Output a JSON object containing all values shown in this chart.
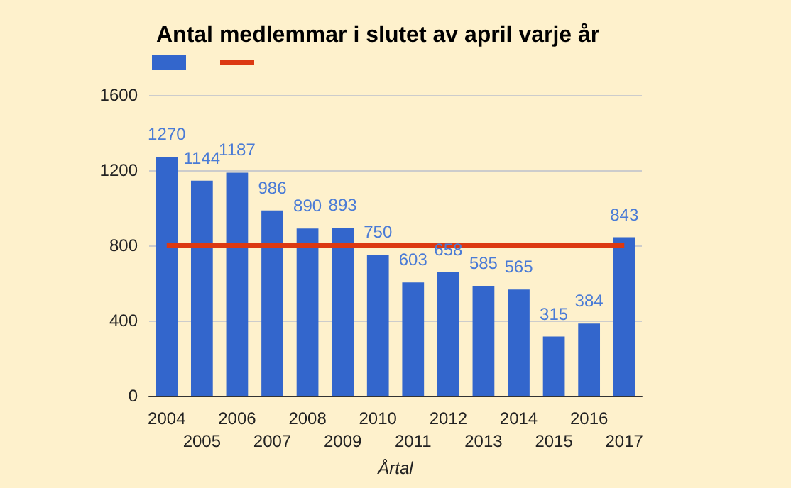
{
  "chart_data": {
    "type": "bar",
    "title": "Antal medlemmar i slutet av april varje år",
    "xlabel": "Årtal",
    "categories": [
      "2004",
      "2005",
      "2006",
      "2007",
      "2008",
      "2009",
      "2010",
      "2011",
      "2012",
      "2013",
      "2014",
      "2015",
      "2016",
      "2017"
    ],
    "series": [
      {
        "color": "#3366cc",
        "values": [
          1270,
          1144,
          1187,
          986,
          890,
          893,
          750,
          603,
          658,
          585,
          565,
          315,
          384,
          843
        ],
        "value_labels": [
          "1270",
          "1144",
          "1187",
          "986",
          "890",
          "893",
          "750",
          "603",
          "658",
          "585",
          "565",
          "315",
          "384",
          "843"
        ]
      },
      {
        "type": "line",
        "color": "#dc3912",
        "values": [
          800,
          800,
          800,
          800,
          800,
          800,
          800,
          800,
          800,
          800,
          800,
          800,
          800,
          800
        ]
      }
    ],
    "ylim": [
      0,
      1600
    ],
    "yticks": [
      0,
      400,
      800,
      1200,
      1600
    ],
    "grid": "y"
  }
}
